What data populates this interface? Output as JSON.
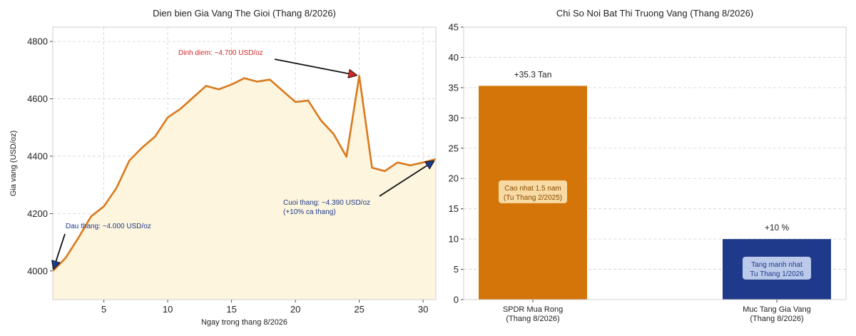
{
  "chart_data": [
    {
      "type": "area",
      "title": "Dien bien Gia Vang The Gioi (Thang 8/2026)",
      "xlabel": "Ngay trong thang 8/2026",
      "ylabel": "Gia vang (USD/oz)",
      "xlim": [
        1,
        31
      ],
      "ylim": [
        3900,
        4850
      ],
      "xticks": [
        5,
        10,
        15,
        20,
        25,
        30
      ],
      "yticks": [
        4000,
        4200,
        4400,
        4600,
        4800
      ],
      "grid": true,
      "colors": {
        "line": "#d9791d",
        "fill": "#fdf5dd"
      },
      "x": [
        1,
        2,
        3,
        4,
        5,
        6,
        7,
        8,
        9,
        10,
        11,
        12,
        13,
        14,
        15,
        16,
        17,
        18,
        19,
        20,
        21,
        22,
        23,
        24,
        25,
        26,
        27,
        28,
        29,
        30,
        31
      ],
      "y": [
        4000,
        4045,
        4115,
        4190,
        4225,
        4290,
        4385,
        4430,
        4468,
        4535,
        4565,
        4605,
        4645,
        4633,
        4650,
        4672,
        4660,
        4667,
        4628,
        4589,
        4594,
        4525,
        4477,
        4398,
        4680,
        4360,
        4348,
        4378,
        4368,
        4378,
        4390
      ],
      "annotations": [
        {
          "text": "Dinh diem: ~4.700 USD/oz",
          "x": 25,
          "y": 4680,
          "color": "#d62728"
        },
        {
          "text": "Dau thang: ~4.000 USD/oz",
          "x": 1,
          "y": 4000,
          "color": "#1f3a8a"
        },
        {
          "text": "Cuoi thang: ~4.390 USD/oz",
          "text2": "(+10% ca thang)",
          "x": 31,
          "y": 4390,
          "color": "#1f3a8a"
        }
      ]
    },
    {
      "type": "bar",
      "title": "Chi So Noi Bat Thi Truong Vang (Thang 8/2026)",
      "categories": [
        {
          "line1": "SPDR Mua Rong",
          "line2": "(Thang 8/2026)"
        },
        {
          "line1": "Muc Tang Gia Vang",
          "line2": "(Thang 8/2026)"
        }
      ],
      "values": [
        35.3,
        10
      ],
      "value_labels": [
        "+35.3 Tan",
        "+10 %"
      ],
      "inner_labels": [
        {
          "line1": "Cao nhat 1.5 nam",
          "line2": "(Tu Thang 2/2025)"
        },
        {
          "line1": "Tang manh nhat",
          "line2": "Tu Thang 1/2026"
        }
      ],
      "ylim": [
        0,
        45
      ],
      "yticks": [
        0,
        5,
        10,
        15,
        20,
        25,
        30,
        35,
        40,
        45
      ],
      "grid": true,
      "colors": [
        "#d4750a",
        "#1f3a8a"
      ],
      "inner_label_bg": [
        "#fbe3b2",
        "#c9d7f2"
      ],
      "inner_label_fg": [
        "#8a4a00",
        "#1f3a8a"
      ]
    }
  ]
}
